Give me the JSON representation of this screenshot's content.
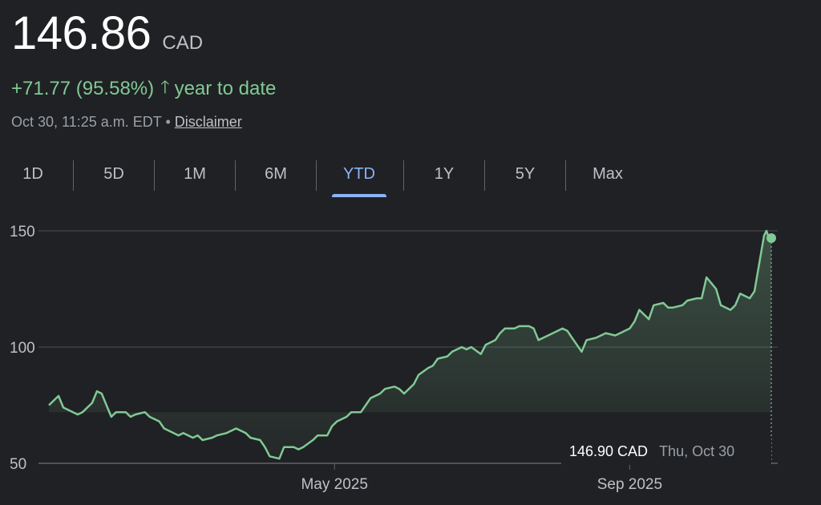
{
  "header": {
    "price": "146.86",
    "currency": "CAD",
    "change": "+71.77 (95.58%)",
    "change_icon": "arrow-up-icon",
    "change_period": "year to date",
    "timestamp": "Oct 30, 11:25 a.m. EDT",
    "bullet": "•",
    "disclaimer": "Disclaimer"
  },
  "tabs": [
    "1D",
    "5D",
    "1M",
    "6M",
    "YTD",
    "1Y",
    "5Y",
    "Max"
  ],
  "active_tab": "YTD",
  "tooltip": {
    "price": "146.90 CAD",
    "date": "Thu, Oct 30"
  },
  "colors": {
    "line": "#81c995",
    "accent": "#8ab4f8",
    "background": "#202124"
  },
  "chart_data": {
    "type": "line",
    "y_ticks": [
      150,
      100,
      50
    ],
    "ylim": [
      50,
      150
    ],
    "x_tick_labels": [
      "May 2025",
      "Sep 2025"
    ],
    "grid": true,
    "series": [
      {
        "x": [
          "2025-01-02",
          "2025-01-06",
          "2025-01-08",
          "2025-01-10",
          "2025-01-14",
          "2025-01-16",
          "2025-01-20",
          "2025-01-22",
          "2025-01-24",
          "2025-01-28",
          "2025-01-30",
          "2025-02-03",
          "2025-02-05",
          "2025-02-07",
          "2025-02-11",
          "2025-02-13",
          "2025-02-17",
          "2025-02-19",
          "2025-02-21",
          "2025-02-25",
          "2025-02-27",
          "2025-03-03",
          "2025-03-05",
          "2025-03-07",
          "2025-03-11",
          "2025-03-13",
          "2025-03-17",
          "2025-03-19",
          "2025-03-21",
          "2025-03-25",
          "2025-03-27",
          "2025-03-31",
          "2025-04-02",
          "2025-04-04",
          "2025-04-08",
          "2025-04-10",
          "2025-04-14",
          "2025-04-16",
          "2025-04-18",
          "2025-04-22",
          "2025-04-24",
          "2025-04-28",
          "2025-04-30",
          "2025-05-02",
          "2025-05-06",
          "2025-05-08",
          "2025-05-12",
          "2025-05-14",
          "2025-05-16",
          "2025-05-20",
          "2025-05-22",
          "2025-05-26",
          "2025-05-28",
          "2025-05-30",
          "2025-06-03",
          "2025-06-05",
          "2025-06-09",
          "2025-06-11",
          "2025-06-13",
          "2025-06-17",
          "2025-06-19",
          "2025-06-23",
          "2025-06-25",
          "2025-06-27",
          "2025-07-01",
          "2025-07-03",
          "2025-07-07",
          "2025-07-09",
          "2025-07-11",
          "2025-07-15",
          "2025-07-17",
          "2025-07-21",
          "2025-07-23",
          "2025-07-25",
          "2025-07-29",
          "2025-07-31",
          "2025-08-04",
          "2025-08-06",
          "2025-08-08",
          "2025-08-12",
          "2025-08-14",
          "2025-08-18",
          "2025-08-20",
          "2025-08-22",
          "2025-08-26",
          "2025-08-28",
          "2025-09-01",
          "2025-09-03",
          "2025-09-05",
          "2025-09-09",
          "2025-09-11",
          "2025-09-15",
          "2025-09-17",
          "2025-09-19",
          "2025-09-23",
          "2025-09-25",
          "2025-09-29",
          "2025-10-01",
          "2025-10-03",
          "2025-10-07",
          "2025-10-09",
          "2025-10-13",
          "2025-10-15",
          "2025-10-17",
          "2025-10-21",
          "2025-10-23",
          "2025-10-27",
          "2025-10-28",
          "2025-10-29",
          "2025-10-30"
        ],
        "y": [
          75,
          79,
          74,
          73,
          71,
          72,
          76,
          81,
          80,
          70,
          72,
          72,
          70,
          71,
          72,
          70,
          68,
          65,
          64,
          62,
          63,
          61,
          62,
          60,
          61,
          62,
          63,
          64,
          65,
          63,
          61,
          60,
          57,
          53,
          52,
          57,
          57,
          56,
          57,
          60,
          62,
          62,
          66,
          68,
          70,
          72,
          72,
          75,
          78,
          80,
          82,
          83,
          82,
          80,
          84,
          88,
          91,
          92,
          95,
          96,
          98,
          100,
          99,
          100,
          97,
          101,
          103,
          106,
          108,
          108,
          109,
          109,
          108,
          103,
          105,
          106,
          108,
          107,
          104,
          98,
          103,
          104,
          105,
          106,
          105,
          106,
          108,
          111,
          116,
          112,
          118,
          119,
          117,
          117,
          118,
          120,
          121,
          121,
          130,
          125,
          118,
          116,
          118,
          123,
          121,
          124,
          148,
          150,
          147,
          146.9
        ]
      }
    ]
  }
}
